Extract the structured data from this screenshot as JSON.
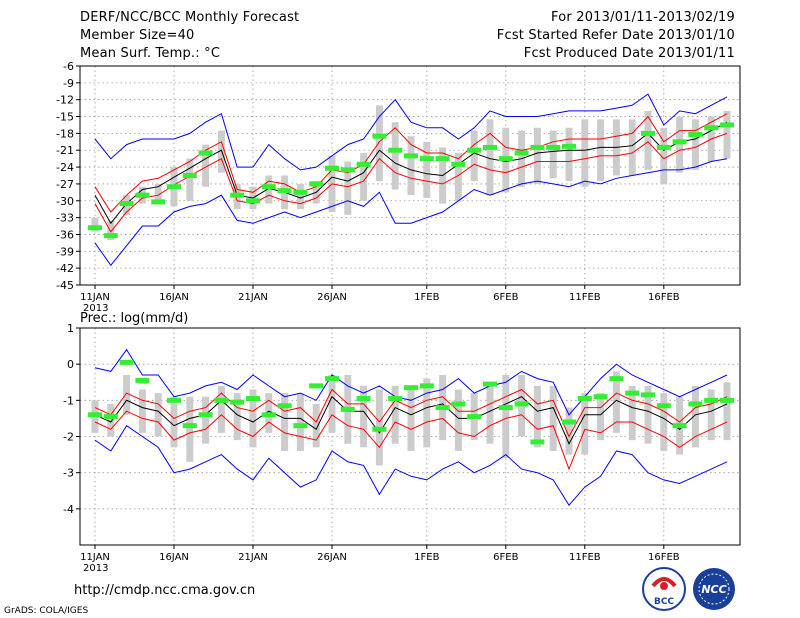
{
  "header": {
    "title": "DERF/NCC/BCC Monthly Forecast",
    "member": "Member Size=40",
    "variable": "Mean Surf. Temp.: °C",
    "period": "For 2013/01/11-2013/02/19",
    "started": "Fcst Started Refer Date 2013/01/10",
    "produced": "Fcst Produced Date 2013/01/11"
  },
  "footer": {
    "url": "http://cmdp.ncc.cma.gov.cn",
    "credit": "GrADS: COLA/IGES",
    "logo_bcc": "BCC",
    "logo_ncc": "NCC"
  },
  "colors": {
    "box": "#cccccc",
    "mean": "#000000",
    "spread": "#ff0000",
    "range": "#0000ff",
    "obs": "#33ee33",
    "grid": "#999999"
  },
  "chart_data": [
    {
      "type": "line",
      "title": "Mean Surf. Temp.: °C",
      "xlabel": "",
      "ylabel": "°C",
      "ylim": [
        -45,
        -6
      ],
      "yticks": [
        -6,
        -9,
        -12,
        -15,
        -18,
        -21,
        -24,
        -27,
        -30,
        -33,
        -36,
        -39,
        -42,
        -45
      ],
      "x_ticks": [
        {
          "day": 1,
          "label": "11JAN",
          "sub": "2013"
        },
        {
          "day": 6,
          "label": "16JAN"
        },
        {
          "day": 11,
          "label": "21JAN"
        },
        {
          "day": 16,
          "label": "26JAN"
        },
        {
          "day": 22,
          "label": "1FEB"
        },
        {
          "day": 27,
          "label": "6FEB"
        },
        {
          "day": 32,
          "label": "11FEB"
        },
        {
          "day": 37,
          "label": "16FEB"
        }
      ],
      "grid": true,
      "series": [
        {
          "name": "ensemble max",
          "values": [
            -19,
            -22.5,
            -20,
            -19,
            -19,
            -19,
            -18,
            -16,
            -14.5,
            -24,
            -24,
            -20,
            -22.5,
            -24.5,
            -24,
            -22,
            -20,
            -19,
            -15,
            -12,
            -16,
            -17,
            -17,
            -19,
            -17,
            -14,
            -15,
            -15,
            -15,
            -14.5,
            -14,
            -14,
            -14,
            -13.5,
            -13,
            -11,
            -16.5,
            -14,
            -14.5,
            -13,
            -11.5
          ]
        },
        {
          "name": "upper spread",
          "values": [
            -27.5,
            -32,
            -29,
            -26.5,
            -26,
            -24.5,
            -23,
            -21,
            -19.5,
            -28,
            -28.5,
            -26.5,
            -27,
            -28.5,
            -27.5,
            -24.5,
            -25,
            -23.5,
            -19.5,
            -17,
            -20,
            -21.5,
            -21.5,
            -22.5,
            -20,
            -18,
            -20.5,
            -21,
            -20.5,
            -19.5,
            -19,
            -19,
            -19,
            -18.5,
            -18,
            -15,
            -19.5,
            -17.5,
            -17.5,
            -16,
            -14.5
          ]
        },
        {
          "name": "ensemble mean",
          "values": [
            -29,
            -34,
            -30.5,
            -28,
            -27.5,
            -25.8,
            -24.2,
            -22.5,
            -21,
            -29,
            -29.5,
            -27.8,
            -28.5,
            -29.5,
            -28.5,
            -25.8,
            -26.5,
            -25,
            -21,
            -23.3,
            -24.5,
            -25.2,
            -25.5,
            -23.5,
            -21.5,
            -22.5,
            -23,
            -22.5,
            -21.5,
            -21.2,
            -21,
            -21,
            -20.5,
            -20.5,
            -20.2,
            -18,
            -21,
            -19.5,
            -19,
            -17.5,
            -16
          ]
        },
        {
          "name": "lower spread",
          "values": [
            -30.5,
            -35.5,
            -32,
            -29.5,
            -29,
            -27.2,
            -25.6,
            -24,
            -22.5,
            -30,
            -30.5,
            -29,
            -30,
            -30.5,
            -29.5,
            -27,
            -27.5,
            -26.5,
            -22.5,
            -25,
            -26,
            -26.5,
            -27,
            -25.5,
            -23.5,
            -24.5,
            -25,
            -24,
            -23,
            -23,
            -23,
            -22.5,
            -22,
            -22,
            -21.5,
            -19.5,
            -22.5,
            -21,
            -20.5,
            -19,
            -18
          ]
        },
        {
          "name": "ensemble min",
          "values": [
            -37.5,
            -41.5,
            -38,
            -34.5,
            -34.5,
            -32,
            -31,
            -30.5,
            -29,
            -33.5,
            -34,
            -33,
            -32,
            -33,
            -32,
            -31,
            -30,
            -31,
            -28.5,
            -34,
            -34,
            -33,
            -32,
            -30,
            -28,
            -29,
            -28,
            -27,
            -26.5,
            -27,
            -27.5,
            -26.5,
            -27,
            -26,
            -25.5,
            -25,
            -24.5,
            -24.5,
            -24,
            -23,
            -22.5
          ]
        },
        {
          "name": "observed",
          "values": [
            -34.8,
            -36.2,
            -30.5,
            -29,
            -30.2,
            -27.5,
            -25.5,
            -21.5,
            null,
            -29,
            -30,
            -27.5,
            -28.2,
            -28.5,
            -27,
            -24.2,
            -24.5,
            -23.5,
            -18.5,
            -21,
            -22,
            -22.5,
            -22.5,
            -23.5,
            -21,
            -20.5,
            -22.5,
            -21.5,
            -20.5,
            -20.5,
            -20.3,
            null,
            null,
            null,
            null,
            -18,
            -20.5,
            -19.5,
            -18.2,
            -17,
            -16.5
          ]
        }
      ],
      "box_low": [
        -35.5,
        -37,
        -32.5,
        -30.5,
        -30.5,
        -31,
        -30,
        -27.5,
        -25,
        -31.5,
        -31.5,
        -30.5,
        -31.5,
        -31.5,
        -30.5,
        -32,
        -32.5,
        -30,
        -26.5,
        -28,
        -29,
        -29.5,
        -30.5,
        -30,
        -26.5,
        -29,
        -28.5,
        -27.5,
        -27,
        -26,
        -26.5,
        -27.5,
        -26.5,
        -25.5,
        -25.5,
        -24.5,
        -27,
        -25,
        -24.5,
        -23,
        -22.5
      ],
      "box_high": [
        -33,
        -33.5,
        -29,
        -27.5,
        -27,
        -24,
        -22.5,
        -20,
        -17.5,
        -27,
        -27.5,
        -25.5,
        -25.5,
        -27,
        -26.5,
        -22,
        -23,
        -21.5,
        -13,
        -16,
        -18.5,
        -19.5,
        -20.5,
        -21.5,
        -17.5,
        -15.5,
        -17,
        -17.5,
        -17,
        -17.5,
        -17,
        -15.5,
        -15.5,
        -15.5,
        -15.5,
        -14,
        -17,
        -15,
        -15.5,
        -15,
        -14
      ]
    },
    {
      "type": "line",
      "title": "Prec.: log(mm/d)",
      "xlabel": "",
      "ylabel": "log(mm/d)",
      "ylim": [
        -5,
        1
      ],
      "yticks": [
        1,
        0,
        -1,
        -2,
        -3,
        -4
      ],
      "x_ticks": [
        {
          "day": 1,
          "label": "11JAN",
          "sub": "2013"
        },
        {
          "day": 6,
          "label": "16JAN"
        },
        {
          "day": 11,
          "label": "21JAN"
        },
        {
          "day": 16,
          "label": "26JAN"
        },
        {
          "day": 22,
          "label": "1FEB"
        },
        {
          "day": 27,
          "label": "6FEB"
        },
        {
          "day": 32,
          "label": "11FEB"
        },
        {
          "day": 37,
          "label": "16FEB"
        }
      ],
      "grid": true,
      "series": [
        {
          "name": "ensemble max",
          "values": [
            -0.1,
            -0.2,
            0.4,
            -0.3,
            -0.3,
            -0.9,
            -0.8,
            -0.6,
            -0.5,
            -0.7,
            -0.3,
            -0.6,
            -0.9,
            -0.8,
            -1.0,
            -0.3,
            -0.6,
            -0.8,
            -0.6,
            -0.9,
            -1.0,
            -0.8,
            -0.7,
            -0.4,
            -0.8,
            -0.6,
            -0.5,
            -0.2,
            -0.4,
            -0.5,
            -1.4,
            -0.9,
            -0.4,
            0.0,
            -0.3,
            -0.5,
            -0.7,
            -0.9,
            -0.7,
            -0.5,
            -0.3
          ]
        },
        {
          "name": "upper spread",
          "values": [
            -1.2,
            -1.4,
            -0.8,
            -1.0,
            -1.1,
            -1.5,
            -1.3,
            -1.2,
            -0.8,
            -1.2,
            -1.3,
            -1.0,
            -1.3,
            -1.2,
            -1.6,
            -0.7,
            -1.1,
            -1.1,
            -1.6,
            -1.0,
            -1.2,
            -1.0,
            -0.9,
            -1.3,
            -1.3,
            -1.1,
            -0.9,
            -0.7,
            -1.1,
            -1.0,
            -2.0,
            -1.2,
            -1.2,
            -0.8,
            -1.0,
            -1.1,
            -1.3,
            -1.6,
            -1.2,
            -1.1,
            -0.9
          ]
        },
        {
          "name": "ensemble mean",
          "values": [
            -1.4,
            -1.6,
            -1.0,
            -1.2,
            -1.3,
            -1.7,
            -1.5,
            -1.4,
            -1.0,
            -1.4,
            -1.6,
            -1.3,
            -1.5,
            -1.5,
            -1.8,
            -0.9,
            -1.3,
            -1.3,
            -1.9,
            -1.2,
            -1.4,
            -1.2,
            -1.1,
            -1.5,
            -1.5,
            -1.3,
            -1.1,
            -0.9,
            -1.3,
            -1.2,
            -2.2,
            -1.4,
            -1.4,
            -1.0,
            -1.2,
            -1.3,
            -1.5,
            -1.8,
            -1.4,
            -1.3,
            -1.1
          ]
        },
        {
          "name": "lower spread",
          "values": [
            -1.6,
            -1.8,
            -1.3,
            -1.5,
            -1.6,
            -2.1,
            -1.9,
            -1.8,
            -1.4,
            -1.8,
            -2.0,
            -1.6,
            -1.9,
            -2.0,
            -2.1,
            -1.4,
            -1.7,
            -1.8,
            -2.3,
            -1.6,
            -1.8,
            -1.6,
            -1.5,
            -1.9,
            -2.0,
            -1.7,
            -1.5,
            -1.4,
            -1.8,
            -1.7,
            -2.9,
            -1.8,
            -1.9,
            -1.6,
            -1.6,
            -1.8,
            -2.0,
            -2.3,
            -2.0,
            -1.8,
            -1.6
          ]
        },
        {
          "name": "ensemble min",
          "values": [
            -2.1,
            -2.4,
            -1.7,
            -2.0,
            -2.3,
            -3.0,
            -2.9,
            -2.7,
            -2.5,
            -2.9,
            -3.2,
            -2.6,
            -3.0,
            -3.4,
            -3.2,
            -2.4,
            -2.7,
            -2.8,
            -3.6,
            -2.9,
            -3.1,
            -3.2,
            -2.9,
            -2.7,
            -3.0,
            -2.8,
            -2.5,
            -2.9,
            -3.0,
            -3.2,
            -3.9,
            -3.4,
            -3.1,
            -2.4,
            -2.5,
            -3.0,
            -3.2,
            -3.3,
            -3.1,
            -2.9,
            -2.7
          ]
        },
        {
          "name": "observed",
          "values": [
            -1.4,
            -1.45,
            0.05,
            -0.45,
            null,
            -1.0,
            -1.7,
            -1.4,
            -1.0,
            -1.05,
            -0.95,
            -1.4,
            -1.15,
            -1.7,
            -0.6,
            -0.4,
            -1.25,
            -0.95,
            -1.8,
            -0.95,
            -0.65,
            -0.6,
            -1.2,
            -1.1,
            -1.45,
            -0.55,
            -1.2,
            -1.1,
            -2.15,
            null,
            -1.6,
            -0.95,
            -0.9,
            -0.4,
            -0.8,
            -0.85,
            -1.15,
            -1.7,
            -1.1,
            -1.0,
            -1.0
          ]
        }
      ],
      "box_low": [
        -1.9,
        -2.0,
        -1.4,
        -1.9,
        -2.0,
        -2.3,
        -2.7,
        -2.2,
        -1.9,
        -2.1,
        -2.3,
        -1.9,
        -2.4,
        -2.4,
        -2.3,
        -1.9,
        -2.2,
        -2.3,
        -2.8,
        -2.2,
        -2.4,
        -2.3,
        -2.1,
        -2.4,
        -2.1,
        -2.2,
        -2.6,
        -2.0,
        -2.3,
        -2.4,
        -2.5,
        -2.5,
        -2.1,
        -1.9,
        -2.1,
        -2.2,
        -2.4,
        -2.5,
        -2.3,
        -2.1,
        -2.1
      ],
      "box_high": [
        -1.0,
        -1.1,
        -0.3,
        -0.7,
        -0.8,
        -0.9,
        -0.9,
        -0.9,
        -0.6,
        -0.8,
        -0.7,
        -0.8,
        -0.8,
        -0.8,
        -1.1,
        -0.3,
        -0.3,
        -0.6,
        -0.7,
        -0.6,
        -0.6,
        -0.4,
        -0.3,
        -0.7,
        -0.8,
        -0.5,
        -0.3,
        -0.3,
        -0.6,
        -0.6,
        -1.2,
        -0.8,
        -0.8,
        -0.2,
        -0.6,
        -0.6,
        -0.8,
        -0.9,
        -0.6,
        -0.7,
        -0.5
      ]
    }
  ]
}
